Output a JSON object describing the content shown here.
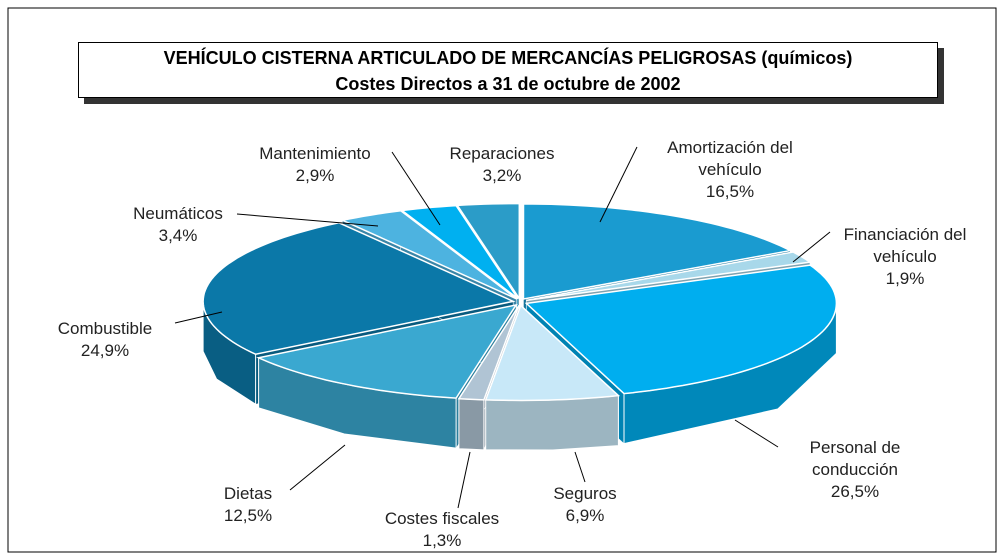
{
  "chart_data": {
    "type": "pie",
    "title": "VEHÍCULO CISTERNA ARTICULADO DE MERCANCÍAS PELIGROSAS (químicos)",
    "subtitle": "Costes Directos a 31 de octubre de 2002",
    "categories": [
      "Amortización del vehículo",
      "Financiación del vehículo",
      "Personal de conducción",
      "Seguros",
      "Costes fiscales",
      "Dietas",
      "Combustible",
      "Neumáticos",
      "Mantenimiento",
      "Reparaciones"
    ],
    "values": [
      16.5,
      1.9,
      26.5,
      6.9,
      1.3,
      12.5,
      24.9,
      3.4,
      2.9,
      3.2
    ],
    "value_labels": [
      "16,5%",
      "1,9%",
      "26,5%",
      "6,9%",
      "1,3%",
      "12,5%",
      "24,9%",
      "3,4%",
      "2,9%",
      "3,2%"
    ],
    "colors": [
      "#1a9bd0",
      "#a8d8ea",
      "#00aeef",
      "#c8e8f8",
      "#b0c4d4",
      "#3aa8d0",
      "#0b78a8",
      "#4db3e0",
      "#00b0f0",
      "#2b9cc8"
    ]
  }
}
